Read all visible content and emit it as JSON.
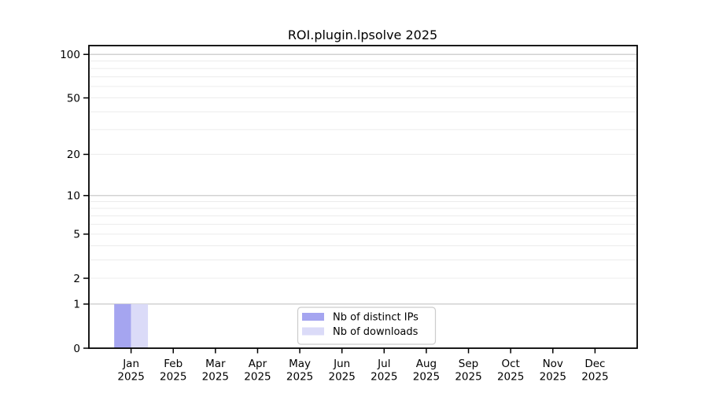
{
  "chart_data": {
    "type": "bar",
    "title": "ROI.plugin.lpsolve 2025",
    "y_scale": "log1p",
    "ylim": [
      0,
      115
    ],
    "y_ticks": [
      0,
      1,
      2,
      5,
      10,
      20,
      50,
      100
    ],
    "grid": "horizontal log gridlines; decades (1,10,100) darker, minors (2-9, 20-90) lighter",
    "legend_position": "inside bottom-center",
    "categories": [
      "Jan",
      "Feb",
      "Mar",
      "Apr",
      "May",
      "Jun",
      "Jul",
      "Aug",
      "Sep",
      "Oct",
      "Nov",
      "Dec"
    ],
    "x_tick_year_line": "2025",
    "series": [
      {
        "name": "Nb of distinct IPs",
        "color": "#a5a5f0",
        "values": [
          1,
          0,
          0,
          0,
          0,
          0,
          0,
          0,
          0,
          0,
          0,
          0
        ]
      },
      {
        "name": "Nb of downloads",
        "color": "#dbdbf8",
        "values": [
          1,
          0,
          0,
          0,
          0,
          0,
          0,
          0,
          0,
          0,
          0,
          0
        ]
      }
    ]
  },
  "colors": {
    "background": "#ffffff",
    "spine": "#000000",
    "major_grid": "#c3c3c3",
    "minor_grid": "#ececec",
    "legend_border": "#cccccc",
    "text": "#000000"
  }
}
